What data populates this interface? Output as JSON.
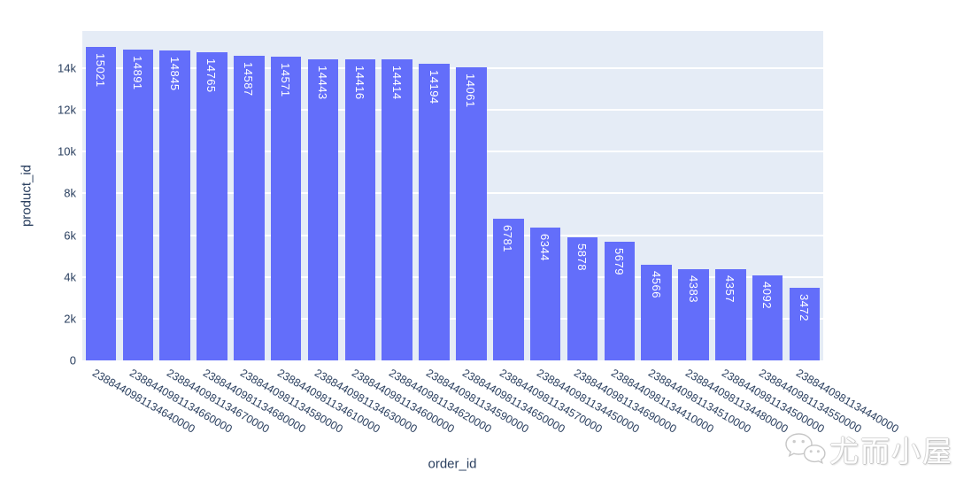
{
  "watermark": {
    "text": "尤而小屋",
    "icon": "wechat-icon"
  },
  "chart_data": {
    "type": "bar",
    "title": "",
    "xlabel": "order_id",
    "ylabel": "product_id",
    "categories": [
      "2388440981134640000",
      "2388440981134660000",
      "2388440981134670000",
      "2388440981134680000",
      "2388440981134580000",
      "2388440981134610000",
      "2388440981134630000",
      "2388440981134600000",
      "2388440981134620000",
      "2388440981134590000",
      "2388440981134650000",
      "2388440981134570000",
      "2388440981134450000",
      "2388440981134690000",
      "2388440981134410000",
      "2388440981134510000",
      "2388440981134480000",
      "2388440981134500000",
      "2388440981134550000",
      "2388440981134440000"
    ],
    "values": [
      15021,
      14891,
      14845,
      14765,
      14587,
      14571,
      14443,
      14416,
      14414,
      14194,
      14061,
      6781,
      6344,
      5878,
      5679,
      4566,
      4383,
      4357,
      4092,
      3472
    ],
    "bar_labels": [
      "15021",
      "14891",
      "14845",
      "14765",
      "14587",
      "14571",
      "14443",
      "14416",
      "14414",
      "14194",
      "14061",
      "6781",
      "6344",
      "5878",
      "5679",
      "4566",
      "4383",
      "4357",
      "4092",
      "3472"
    ],
    "ytick_values": [
      0,
      2000,
      4000,
      6000,
      8000,
      10000,
      12000,
      14000
    ],
    "ytick_labels": [
      "0",
      "2k",
      "4k",
      "6k",
      "8k",
      "10k",
      "12k",
      "14k"
    ],
    "ylim": [
      0,
      15782
    ],
    "xtick_angle_deg": 30,
    "grid": true,
    "legend_position": "none",
    "colors": {
      "bar": "#636efa",
      "bar_label_text": "#ffffff",
      "plot_bg": "#e5ecf6",
      "grid": "#ffffff",
      "tick_text": "#2a3f5f",
      "paper_bg": "#ffffff"
    }
  }
}
